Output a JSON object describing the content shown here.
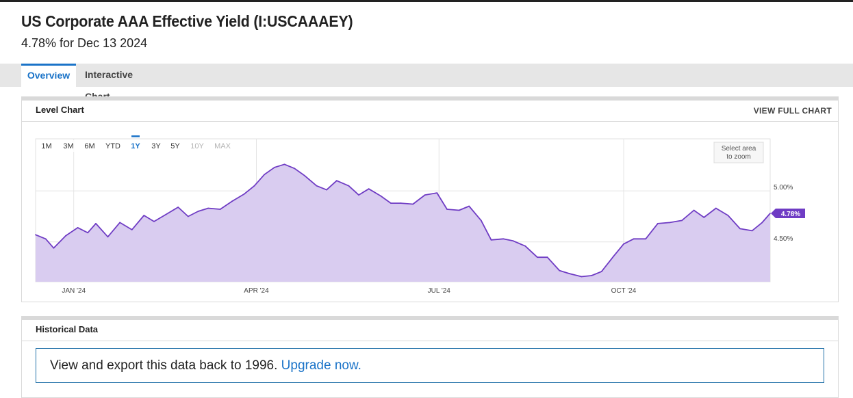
{
  "header": {
    "title": "US Corporate AAA Effective Yield (I:USCAAAEY)",
    "subtitle": "4.78% for Dec 13 2024"
  },
  "tabs": [
    {
      "label": "Overview",
      "active": true
    },
    {
      "label": "Interactive Chart",
      "active": false
    }
  ],
  "level_chart": {
    "title": "Level Chart",
    "view_full_label": "VIEW FULL CHART",
    "ranges": [
      "1M",
      "3M",
      "6M",
      "YTD",
      "1Y",
      "3Y",
      "5Y",
      "10Y",
      "MAX"
    ],
    "active_range": "1Y",
    "disabled_ranges": [
      "10Y",
      "MAX"
    ],
    "zoom_hint_line1": "Select area",
    "zoom_hint_line2": "to zoom",
    "colors": {
      "line": "#6f3cc4",
      "fill": "#d9ccf0",
      "active_range": "#1a73c8"
    }
  },
  "chart_data": {
    "type": "area",
    "title": "",
    "xlabel": "",
    "ylabel": "",
    "x_tick_labels": [
      "JAN '24",
      "APR '24",
      "JUL '24",
      "OCT '24"
    ],
    "x_tick_dates": [
      "2024-01-01",
      "2024-04-01",
      "2024-07-01",
      "2024-10-01"
    ],
    "x_range": [
      "2023-12-13",
      "2024-12-13"
    ],
    "y_tick_labels": [
      "5.00%",
      "4.50%"
    ],
    "y_ticks": [
      5.0,
      4.5
    ],
    "ylim": [
      4.11,
      5.51
    ],
    "last_value_label": "4.78%",
    "last_value": 4.78,
    "grid": true,
    "series": [
      {
        "x": [
          "2023-12-13",
          "2023-12-18",
          "2023-12-22",
          "2023-12-28",
          "2024-01-03",
          "2024-01-08",
          "2024-01-12",
          "2024-01-18",
          "2024-01-24",
          "2024-01-30",
          "2024-02-05",
          "2024-02-10",
          "2024-02-16",
          "2024-02-22",
          "2024-02-27",
          "2024-03-03",
          "2024-03-08",
          "2024-03-14",
          "2024-03-20",
          "2024-03-26",
          "2024-03-31",
          "2024-04-05",
          "2024-04-10",
          "2024-04-15",
          "2024-04-20",
          "2024-04-25",
          "2024-05-01",
          "2024-05-06",
          "2024-05-11",
          "2024-05-17",
          "2024-05-22",
          "2024-05-27",
          "2024-06-02",
          "2024-06-07",
          "2024-06-12",
          "2024-06-18",
          "2024-06-24",
          "2024-06-30",
          "2024-07-05",
          "2024-07-11",
          "2024-07-16",
          "2024-07-22",
          "2024-07-27",
          "2024-08-02",
          "2024-08-07",
          "2024-08-13",
          "2024-08-19",
          "2024-08-24",
          "2024-08-30",
          "2024-09-04",
          "2024-09-10",
          "2024-09-15",
          "2024-09-20",
          "2024-09-26",
          "2024-10-01",
          "2024-10-06",
          "2024-10-12",
          "2024-10-18",
          "2024-10-24",
          "2024-10-30",
          "2024-11-05",
          "2024-11-10",
          "2024-11-16",
          "2024-11-22",
          "2024-11-28",
          "2024-12-04",
          "2024-12-09",
          "2024-12-13"
        ],
        "y": [
          4.57,
          4.53,
          4.44,
          4.56,
          4.64,
          4.59,
          4.68,
          4.55,
          4.69,
          4.62,
          4.76,
          4.7,
          4.77,
          4.84,
          4.75,
          4.8,
          4.83,
          4.82,
          4.9,
          4.97,
          5.05,
          5.16,
          5.23,
          5.26,
          5.22,
          5.15,
          5.05,
          5.01,
          5.1,
          5.05,
          4.96,
          5.02,
          4.95,
          4.88,
          4.88,
          4.87,
          4.96,
          4.98,
          4.82,
          4.81,
          4.85,
          4.71,
          4.52,
          4.53,
          4.51,
          4.46,
          4.35,
          4.35,
          4.22,
          4.19,
          4.16,
          4.17,
          4.21,
          4.36,
          4.48,
          4.53,
          4.53,
          4.68,
          4.69,
          4.71,
          4.81,
          4.74,
          4.83,
          4.76,
          4.63,
          4.61,
          4.69,
          4.78
        ]
      }
    ]
  },
  "historical": {
    "title": "Historical Data",
    "message": "View and export this data back to 1996.",
    "link": "Upgrade now."
  }
}
